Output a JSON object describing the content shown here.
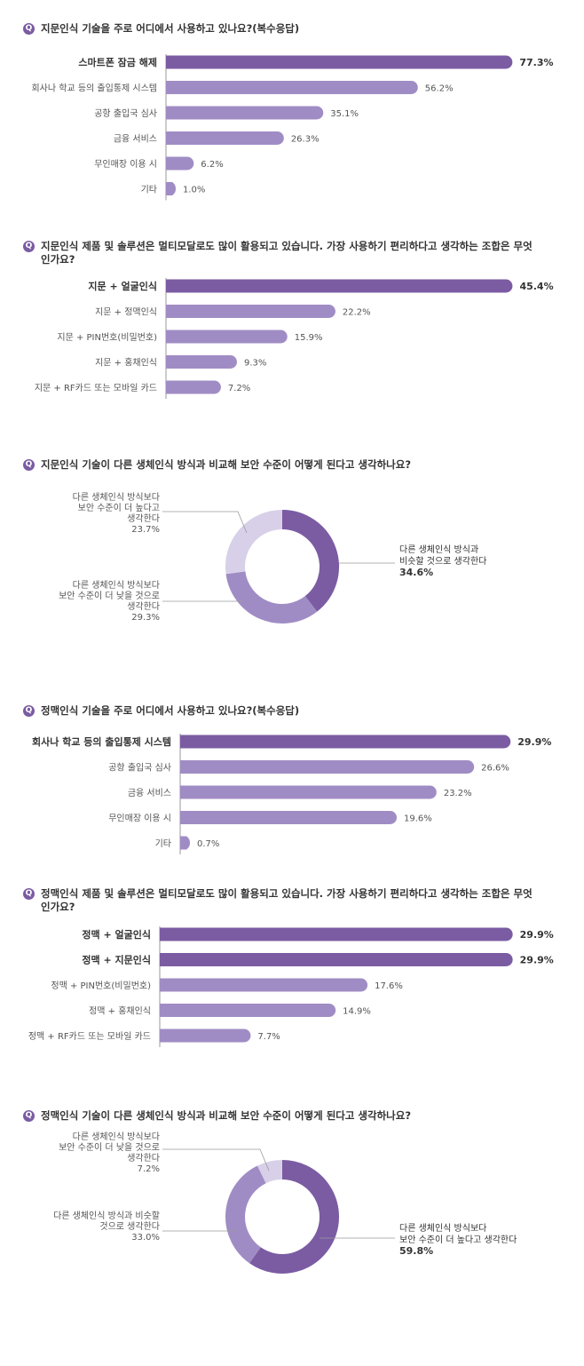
{
  "q_icon": "Q",
  "colors": {
    "dark": "#7b5ca3",
    "mid": "#a08cc4",
    "light": "#d8d0e8",
    "axis": "#9a9a9a"
  },
  "sections": [
    {
      "question": "지문인식 기술을 주로 어디에서 사용하고 있나요?(복수응답)",
      "chart_data": {
        "type": "bar",
        "orientation": "horizontal",
        "xlim": [
          0,
          80
        ],
        "categories": [
          "스마트폰 잠금 해제",
          "회사나 학교 등의 출입통제 시스템",
          "공항 출입국 심사",
          "금융 서비스",
          "무인매장 이용 시",
          "기타"
        ],
        "values": [
          77.3,
          56.2,
          35.1,
          26.3,
          6.2,
          1.0
        ],
        "value_labels": [
          "77.3%",
          "56.2%",
          "35.1%",
          "26.3%",
          "6.2%",
          "1.0%"
        ],
        "highlight": [
          true,
          false,
          false,
          false,
          false,
          false
        ]
      }
    },
    {
      "question": "지문인식 제품 및 솔루션은 멀티모달로도 많이 활용되고 있습니다. 가장 사용하기 편리하다고 생각하는 조합은 무엇인가요?",
      "chart_data": {
        "type": "bar",
        "orientation": "horizontal",
        "xlim": [
          0,
          80
        ],
        "categories": [
          "지문 + 얼굴인식",
          "지문 + 정맥인식",
          "지문 + PIN번호(비밀번호)",
          "지문 + 홍채인식",
          "지문 + RF카드 또는 모바일 카드"
        ],
        "values": [
          45.4,
          22.2,
          15.9,
          9.3,
          7.2
        ],
        "value_labels": [
          "45.4%",
          "22.2%",
          "15.9%",
          "9.3%",
          "7.2%"
        ],
        "highlight": [
          true,
          false,
          false,
          false,
          false
        ]
      }
    },
    {
      "question": "지문인식 기술이 다른 생체인식 방식과 비교해 보안 수준이 어떻게 된다고 생각하나요?",
      "chart_data": {
        "type": "pie",
        "donut": true,
        "slices": [
          {
            "label": "다른 생체인식 방식과 비슷할 것으로 생각한다",
            "value": 34.6,
            "value_label": "34.6%"
          },
          {
            "label": "다른 생체인식 방식보다 보안 수준이 더 낮을 것으로 생각한다",
            "value": 29.3,
            "value_label": "29.3%"
          },
          {
            "label": "다른 생체인식 방식보다 보안 수준이 더 높다고 생각한다",
            "value": 23.7,
            "value_label": "23.7%"
          }
        ],
        "annotations": [
          {
            "lines": [
              "다른 생체인식 방식보다",
              "보안 수준이 더 높다고",
              "생각한다"
            ],
            "value_label": "23.7%"
          },
          {
            "lines": [
              "다른 생체인식 방식보다",
              "보안 수준이 더 낮을 것으로",
              "생각한다"
            ],
            "value_label": "29.3%"
          },
          {
            "lines": [
              "다른 생체인식 방식과",
              "비슷할 것으로 생각한다"
            ],
            "value_label": "34.6%"
          }
        ]
      }
    },
    {
      "question": "정맥인식 기술을 주로 어디에서 사용하고 있나요?(복수응답)",
      "chart_data": {
        "type": "bar",
        "orientation": "horizontal",
        "xlim": [
          0,
          31
        ],
        "categories": [
          "회사나 학교 등의 출입통제 시스템",
          "공항 출입국 심사",
          "금융 서비스",
          "무인매장 이용 시",
          "기타"
        ],
        "values": [
          29.9,
          26.6,
          23.2,
          19.6,
          0.7
        ],
        "value_labels": [
          "29.9%",
          "26.6%",
          "23.2%",
          "19.6%",
          "0.7%"
        ],
        "highlight": [
          true,
          false,
          false,
          false,
          false
        ]
      }
    },
    {
      "question": "정맥인식 제품 및 솔루션은 멀티모달로도 많이 활용되고 있습니다. 가장 사용하기 편리하다고 생각하는 조합은 무엇인가요?",
      "chart_data": {
        "type": "bar",
        "orientation": "horizontal",
        "xlim": [
          0,
          31
        ],
        "categories": [
          "정맥 + 얼굴인식",
          "정맥 + 지문인식",
          "정맥 + PIN번호(비밀번호)",
          "정맥 + 홍채인식",
          "정맥 + RF카드 또는 모바일 카드"
        ],
        "values": [
          29.9,
          29.9,
          17.6,
          14.9,
          7.7
        ],
        "value_labels": [
          "29.9%",
          "29.9%",
          "17.6%",
          "14.9%",
          "7.7%"
        ],
        "highlight": [
          true,
          true,
          false,
          false,
          false
        ]
      }
    },
    {
      "question": "정맥인식 기술이 다른 생체인식 방식과 비교해 보안 수준이 어떻게 된다고 생각하나요?",
      "chart_data": {
        "type": "pie",
        "donut": true,
        "slices": [
          {
            "label": "다른 생체인식 방식보다 보안 수준이 더 높다고 생각한다",
            "value": 59.8,
            "value_label": "59.8%"
          },
          {
            "label": "다른 생체인식 방식과 비슷할 것으로 생각한다",
            "value": 33.0,
            "value_label": "33.0%"
          },
          {
            "label": "다른 생체인식 방식보다 보안 수준이 더 낮을 것으로 생각한다",
            "value": 7.2,
            "value_label": "7.2%"
          }
        ],
        "annotations": [
          {
            "lines": [
              "다른 생체인식 방식보다",
              "보안 수준이 더 낮을 것으로",
              "생각한다"
            ],
            "value_label": "7.2%"
          },
          {
            "lines": [
              "다른 생체인식 방식과 비슷할",
              "것으로 생각한다"
            ],
            "value_label": "33.0%"
          },
          {
            "lines": [
              "다른 생체인식 방식보다",
              "보안 수준이 더 높다고 생각한다"
            ],
            "value_label": "59.8%"
          }
        ]
      }
    }
  ]
}
